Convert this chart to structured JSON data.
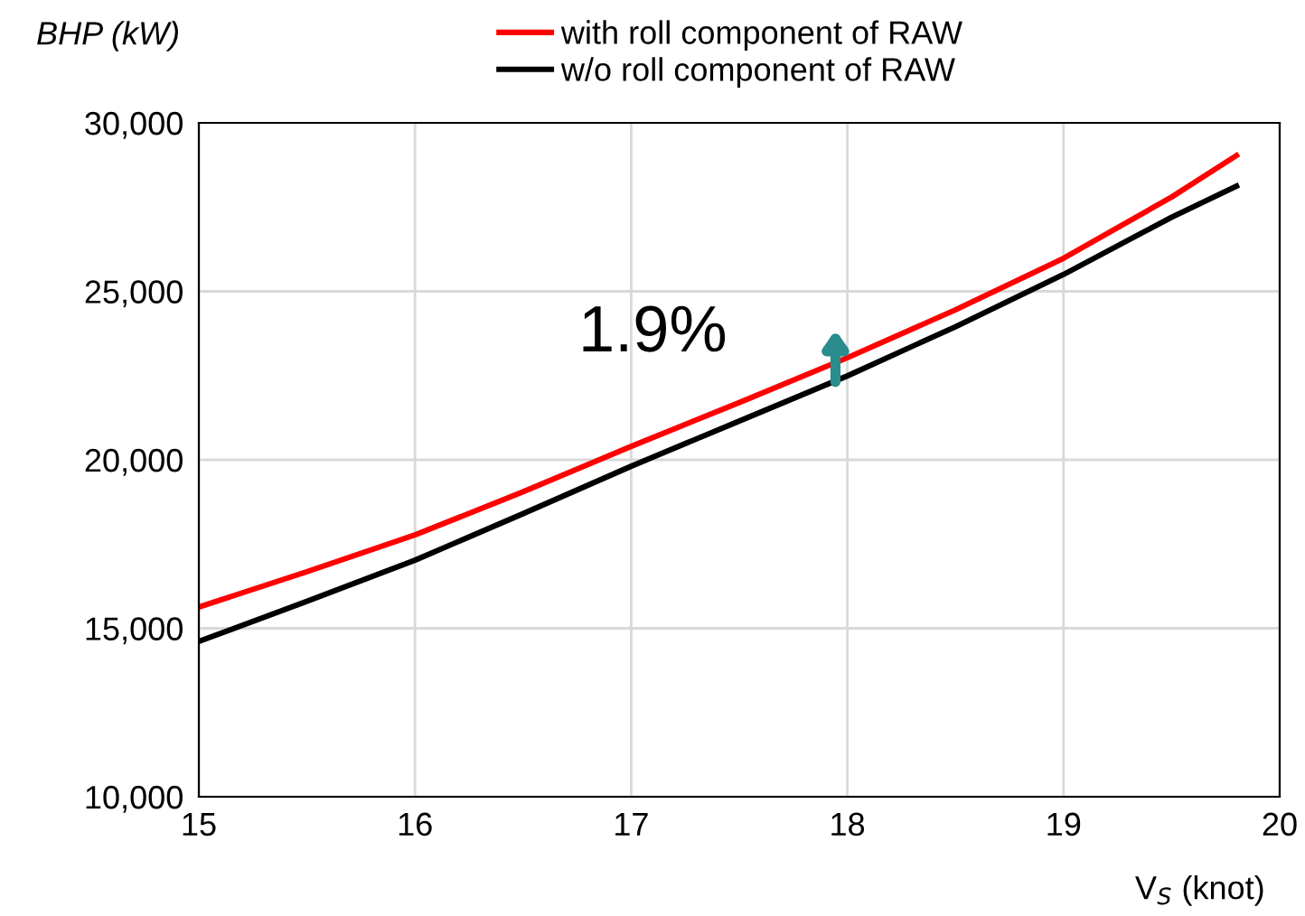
{
  "chart_data": {
    "type": "line",
    "xlabel": "V$_{S}$ (knot)",
    "ylabel": "BHP (kW)",
    "x": [
      15,
      15.5,
      16,
      16.5,
      17,
      17.5,
      18,
      18.5,
      19,
      19.5,
      19.8
    ],
    "series": [
      {
        "name": "with roll component of RAW",
        "color": "#ff0000",
        "values": [
          15630,
          16680,
          17770,
          19050,
          20400,
          21700,
          23030,
          24450,
          25980,
          27800,
          29030
        ]
      },
      {
        "name": "w/o roll component of RAW",
        "color": "#000000",
        "values": [
          14610,
          15800,
          17020,
          18400,
          19810,
          21150,
          22490,
          23950,
          25500,
          27200,
          28120
        ]
      }
    ],
    "annotations": [
      "1.9%"
    ],
    "xlim": [
      15,
      20
    ],
    "xticks": [
      15,
      16,
      17,
      18,
      19,
      20
    ],
    "ylim": [
      10000,
      30000
    ],
    "yticks": [
      {
        "value": 10000,
        "label": "10,000"
      },
      {
        "value": 15000,
        "label": "15,000"
      },
      {
        "value": 20000,
        "label": "20,000"
      },
      {
        "value": 25000,
        "label": "25,000"
      },
      {
        "value": 30000,
        "label": "30,000"
      }
    ],
    "grid": true,
    "legend": "top",
    "marker": "none",
    "line_style": "solid"
  }
}
